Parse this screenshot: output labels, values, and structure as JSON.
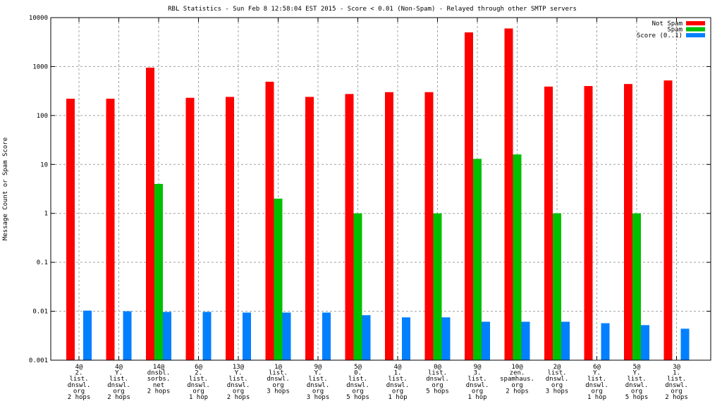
{
  "chart_data": {
    "type": "bar",
    "title": "RBL Statistics - Sun Feb  8 12:58:04 EST 2015 - Score < 0.01 (Non-Spam) - Relayed through other SMTP servers",
    "xlabel": "",
    "ylabel": "Message Count or Spam Score",
    "yscale": "log",
    "ylim": [
      0.001,
      10000
    ],
    "yticks": [
      "0.001",
      "0.01",
      "0.1",
      "1",
      "10",
      "100",
      "1000",
      "10000"
    ],
    "grid": true,
    "legend_position": "top-right",
    "categories": [
      [
        "4@",
        "2.",
        "list.",
        "dnswl.",
        "org",
        "2 hops"
      ],
      [
        "4@",
        "Y.",
        "list.",
        "dnswl.",
        "org",
        "2 hops"
      ],
      [
        "14@",
        "dnsbl.",
        "sorbs.",
        "net",
        "2 hops"
      ],
      [
        "6@",
        "2.",
        "list.",
        "dnswl.",
        "org",
        "1 hop"
      ],
      [
        "13@",
        "Y.",
        "list.",
        "dnswl.",
        "org",
        "2 hops"
      ],
      [
        "1@",
        "list.",
        "dnswl.",
        "org",
        "3 hops"
      ],
      [
        "9@",
        "Y.",
        "list.",
        "dnswl.",
        "org",
        "3 hops"
      ],
      [
        "5@",
        "0.",
        "list.",
        "dnswl.",
        "org",
        "5 hops"
      ],
      [
        "4@",
        "1.",
        "list.",
        "dnswl.",
        "org",
        "1 hop"
      ],
      [
        "0@",
        "list.",
        "dnswl.",
        "org",
        "5 hops"
      ],
      [
        "9@",
        "3.",
        "list.",
        "dnswl.",
        "org",
        "1 hop"
      ],
      [
        "10@",
        "zen.",
        "spamhaus.",
        "org",
        "2 hops"
      ],
      [
        "2@",
        "list.",
        "dnswl.",
        "org",
        "3 hops"
      ],
      [
        "6@",
        "Y.",
        "list.",
        "dnswl.",
        "org",
        "1 hop"
      ],
      [
        "5@",
        "Y.",
        "list.",
        "dnswl.",
        "org",
        "5 hops"
      ],
      [
        "3@",
        "1.",
        "list.",
        "dnswl.",
        "org",
        "2 hops"
      ]
    ],
    "series": [
      {
        "name": "Not Spam",
        "color": "#ff0000",
        "values": [
          220,
          220,
          950,
          230,
          240,
          490,
          240,
          275,
          300,
          300,
          5000,
          6000,
          390,
          400,
          440,
          520
        ]
      },
      {
        "name": "Spam",
        "color": "#00c000",
        "values": [
          0,
          0,
          4,
          0,
          0,
          2,
          0,
          1,
          0,
          1,
          13,
          16,
          1,
          0,
          1,
          0
        ]
      },
      {
        "name": "Score (0..1)",
        "color": "#0080ff",
        "values": [
          0.0103,
          0.01,
          0.0097,
          0.0097,
          0.0094,
          0.0094,
          0.0094,
          0.0083,
          0.0075,
          0.0075,
          0.0061,
          0.0061,
          0.0061,
          0.0057,
          0.0052,
          0.0044
        ]
      }
    ]
  }
}
